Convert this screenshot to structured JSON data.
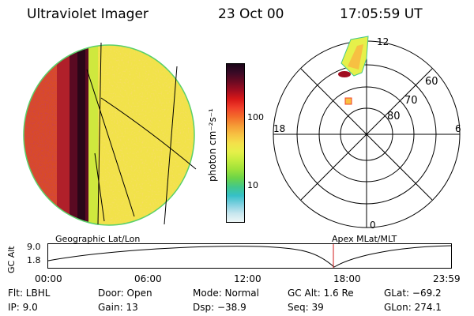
{
  "header": {
    "instrument": "Ultraviolet Imager",
    "date": "23 Oct 00",
    "time": "17:05:59 UT"
  },
  "colorbar": {
    "label": "photon cm⁻²s⁻¹",
    "ticks": [
      "100",
      "10"
    ],
    "colors": [
      "#1a0518",
      "#3a0a26",
      "#6a0a22",
      "#a00d20",
      "#d81818",
      "#f0402a",
      "#f36b2a",
      "#f59a35",
      "#f7c042",
      "#f4e04a",
      "#e6f04a",
      "#c4ec3e",
      "#9ee23a",
      "#6cd448",
      "#42c88a",
      "#36c0c8",
      "#80d0e0",
      "#c6e6ee",
      "#eef6f6"
    ]
  },
  "polar": {
    "mlt_labels": {
      "top": "12",
      "left": "18",
      "right": "6",
      "bottom": "0"
    },
    "lat_labels": [
      "60",
      "70",
      "80"
    ]
  },
  "timeline": {
    "ylabel": "GC Alt",
    "ymax": "9.0",
    "ymin": "1.8",
    "left_title": "Geographic Lat/Lon",
    "right_title": "Apex MLat/MLT",
    "ticks": [
      "00:00",
      "06:00",
      "12:00",
      "18:00",
      "23:59"
    ],
    "marker_time": "17:06"
  },
  "status": {
    "flt": "Flt: LBHL",
    "ip": "IP:  9.0",
    "door": "Door: Open",
    "gain": "Gain: 13",
    "mode": "Mode: Normal",
    "dsp": "Dsp:  −38.9",
    "gcalt": "GC Alt: 1.6 Re",
    "seq": "Seq: 39",
    "glat": "GLat: −69.2",
    "glon": "GLon: 274.1"
  }
}
